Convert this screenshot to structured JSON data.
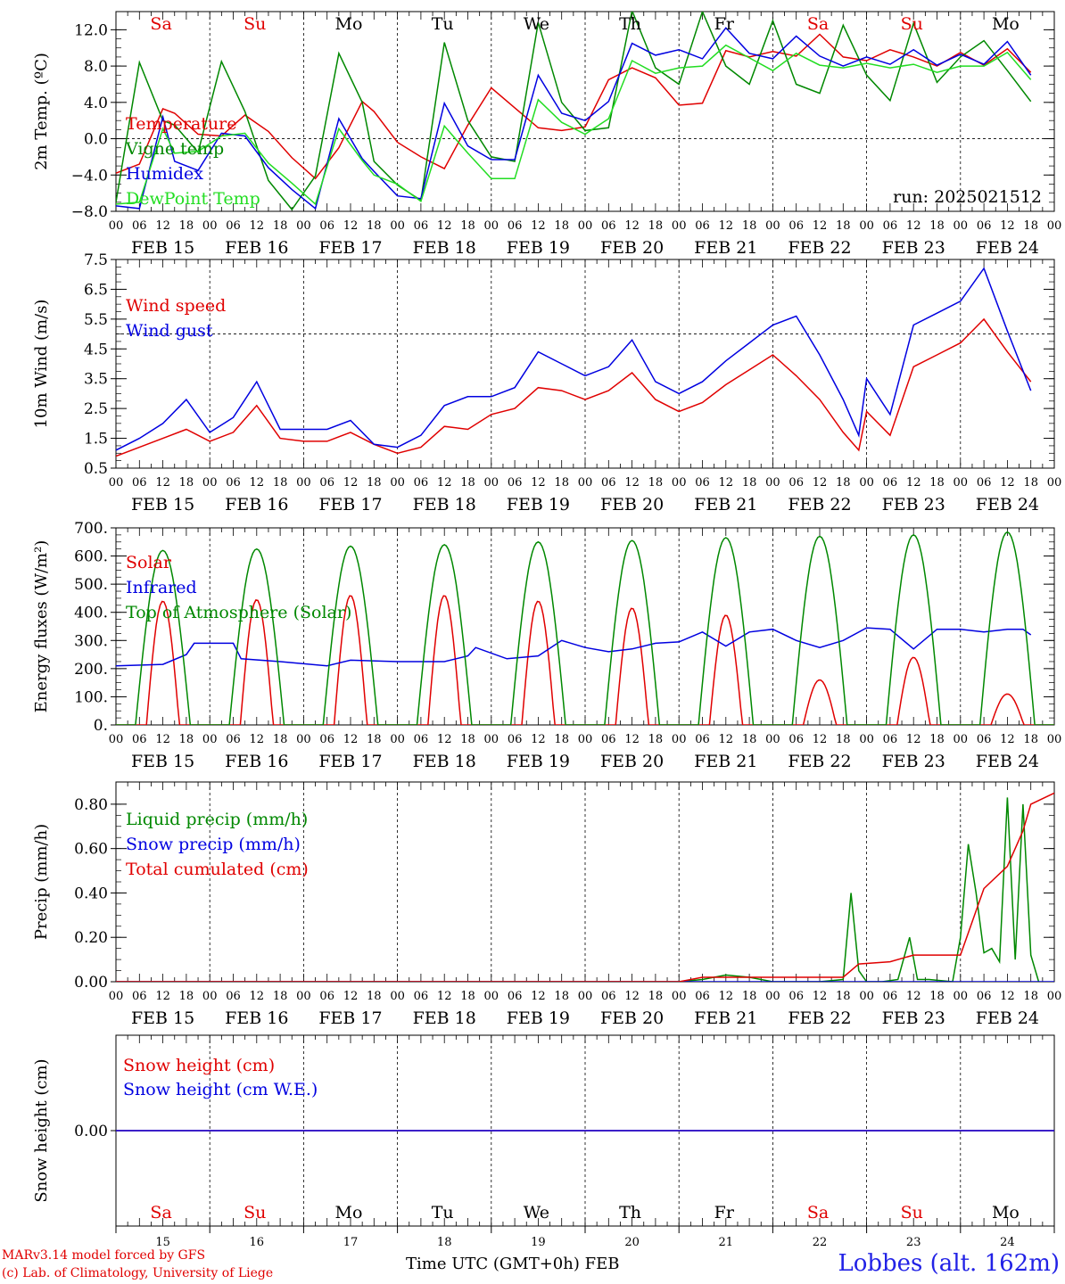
{
  "location_title": "Lobbes (alt. 162m)",
  "footer": {
    "model_line": "MARv3.14 model forced by GFS",
    "credit_line": "(c) Lab. of Climatology, University of Liege",
    "time_axis_label": "Time UTC (GMT+0h)",
    "month": "FEB"
  },
  "colors": {
    "red": "#e00000",
    "green": "#008800",
    "blue": "#0000e0",
    "light_green": "#22dd22",
    "weekend": "#e00000",
    "weekday": "#000000"
  },
  "days": [
    {
      "abbr": "Sa",
      "date": "FEB 15",
      "num": "15",
      "weekend": true
    },
    {
      "abbr": "Su",
      "date": "FEB 16",
      "num": "16",
      "weekend": true
    },
    {
      "abbr": "Mo",
      "date": "FEB 17",
      "num": "17",
      "weekend": false
    },
    {
      "abbr": "Tu",
      "date": "FEB 18",
      "num": "18",
      "weekend": false
    },
    {
      "abbr": "We",
      "date": "FEB 19",
      "num": "19",
      "weekend": false
    },
    {
      "abbr": "Th",
      "date": "FEB 20",
      "num": "20",
      "weekend": false
    },
    {
      "abbr": "Fr",
      "date": "FEB 21",
      "num": "21",
      "weekend": false
    },
    {
      "abbr": "Sa",
      "date": "FEB 22",
      "num": "22",
      "weekend": true
    },
    {
      "abbr": "Su",
      "date": "FEB 23",
      "num": "23",
      "weekend": true
    },
    {
      "abbr": "Mo",
      "date": "FEB 24",
      "num": "24",
      "weekend": false
    }
  ],
  "hour_ticks": [
    "00",
    "06",
    "12",
    "18"
  ],
  "chart_data": [
    {
      "type": "line",
      "ylabel": "2m Temp. (ºC)",
      "ylim": [
        -8,
        14
      ],
      "yticks": [
        "12.0",
        "8.0",
        "4.0",
        "0.0",
        "−4.0",
        "−8.0"
      ],
      "ytick_values": [
        12,
        8,
        4,
        0,
        -4,
        -8
      ],
      "ref_line": 0,
      "annotation": "run: 2025021512",
      "x_unit": "hours since FEB 15 00 UTC",
      "series": [
        {
          "name": "Temperature",
          "color": "#e00000",
          "x": [
            0,
            6,
            12,
            15,
            21,
            27,
            33,
            39,
            45,
            51,
            57,
            63,
            66,
            72,
            78,
            84,
            90,
            96,
            102,
            108,
            114,
            120,
            126,
            132,
            138,
            144,
            150,
            156,
            162,
            168,
            174,
            180,
            186,
            192,
            198,
            204,
            210,
            216,
            222,
            228,
            234
          ],
          "y": [
            -3.8,
            -2.8,
            3.3,
            2.8,
            0.5,
            0.3,
            2.6,
            0.8,
            -2.1,
            -4.4,
            -1.0,
            4.1,
            3.0,
            -0.4,
            -2.0,
            -3.3,
            1.5,
            5.6,
            3.4,
            1.2,
            0.9,
            1.3,
            6.5,
            7.8,
            6.7,
            3.7,
            3.9,
            9.7,
            9.0,
            9.6,
            9.1,
            11.5,
            9.0,
            8.6,
            9.8,
            9.0,
            8.0,
            9.5,
            8.1,
            9.9,
            7.3
          ]
        },
        {
          "name": "Vigne temp",
          "color": "#008800",
          "x": [
            0,
            6,
            12,
            15,
            21,
            27,
            33,
            39,
            45,
            51,
            57,
            63,
            66,
            72,
            78,
            84,
            90,
            96,
            102,
            108,
            114,
            120,
            126,
            132,
            138,
            144,
            150,
            156,
            162,
            168,
            174,
            180,
            186,
            192,
            198,
            204,
            210,
            216,
            222,
            228,
            234
          ],
          "y": [
            -7.0,
            8.4,
            2.0,
            1.5,
            -1.5,
            8.5,
            3.0,
            -4.6,
            -7.8,
            -4.1,
            9.4,
            4.0,
            -2.5,
            -5.1,
            -6.8,
            10.6,
            2.0,
            -2.0,
            -2.5,
            12.8,
            4.0,
            0.9,
            1.2,
            14.1,
            7.8,
            6.0,
            14.0,
            8.0,
            6.0,
            13.0,
            6.0,
            5.0,
            12.5,
            7.0,
            4.2,
            12.7,
            6.2,
            9.0,
            10.8,
            7.5,
            4.1
          ]
        },
        {
          "name": "Humidex",
          "color": "#0000e0",
          "x": [
            0,
            6,
            12,
            15,
            21,
            27,
            33,
            39,
            45,
            51,
            57,
            63,
            66,
            72,
            78,
            84,
            90,
            96,
            102,
            108,
            114,
            120,
            126,
            132,
            138,
            144,
            150,
            156,
            162,
            168,
            174,
            180,
            186,
            192,
            198,
            204,
            210,
            216,
            222,
            228,
            234
          ],
          "y": [
            -7.4,
            -7.7,
            2.4,
            -2.5,
            -3.5,
            0.6,
            0.3,
            -3.2,
            -5.6,
            -7.7,
            2.2,
            -2.2,
            -3.6,
            -6.3,
            -6.6,
            3.9,
            -0.8,
            -2.3,
            -2.3,
            7.0,
            2.8,
            2.0,
            4.1,
            10.5,
            9.2,
            9.8,
            8.8,
            12.2,
            9.4,
            8.8,
            11.3,
            9.1,
            8.0,
            9.0,
            8.2,
            9.8,
            8.1,
            9.3,
            8.2,
            10.7,
            7.0
          ]
        },
        {
          "name": "DewPoint Temp",
          "color": "#22dd22",
          "x": [
            0,
            6,
            12,
            15,
            21,
            27,
            33,
            39,
            45,
            51,
            57,
            63,
            66,
            72,
            78,
            84,
            90,
            96,
            102,
            108,
            114,
            120,
            126,
            132,
            138,
            144,
            150,
            156,
            162,
            168,
            174,
            180,
            186,
            192,
            198,
            204,
            210,
            216,
            222,
            228,
            234
          ],
          "y": [
            -7.2,
            -7.0,
            1.1,
            -1.6,
            -1.4,
            0.3,
            0.6,
            -2.7,
            -4.9,
            -7.2,
            1.1,
            -2.4,
            -4.0,
            -5.0,
            -6.9,
            1.4,
            -1.6,
            -4.4,
            -4.4,
            4.3,
            1.8,
            0.5,
            2.2,
            8.6,
            7.2,
            7.8,
            8.0,
            10.3,
            8.9,
            7.5,
            9.4,
            8.1,
            7.8,
            8.3,
            7.8,
            8.2,
            7.3,
            8.0,
            8.0,
            9.5,
            6.5
          ]
        }
      ]
    },
    {
      "type": "line",
      "ylabel": "10m Wind (m/s)",
      "ylim": [
        0.5,
        7.5
      ],
      "yticks": [
        "7.5",
        "6.5",
        "5.5",
        "4.5",
        "3.5",
        "2.5",
        "1.5",
        "0.5"
      ],
      "ytick_values": [
        7.5,
        6.5,
        5.5,
        4.5,
        3.5,
        2.5,
        1.5,
        0.5
      ],
      "ref_line": 5.0,
      "x_unit": "hours since FEB 15 00 UTC",
      "series": [
        {
          "name": "Wind speed",
          "color": "#e00000",
          "x": [
            0,
            6,
            12,
            18,
            24,
            30,
            36,
            42,
            48,
            54,
            60,
            66,
            72,
            78,
            84,
            90,
            96,
            102,
            108,
            114,
            120,
            126,
            132,
            138,
            144,
            150,
            156,
            162,
            168,
            174,
            180,
            186,
            190,
            192,
            198,
            204,
            210,
            216,
            222,
            228,
            234
          ],
          "y": [
            0.9,
            1.2,
            1.5,
            1.8,
            1.4,
            1.7,
            2.6,
            1.5,
            1.4,
            1.4,
            1.7,
            1.3,
            1.0,
            1.2,
            1.9,
            1.8,
            2.3,
            2.5,
            3.2,
            3.1,
            2.8,
            3.1,
            3.7,
            2.8,
            2.4,
            2.7,
            3.3,
            3.8,
            4.3,
            3.6,
            2.8,
            1.7,
            1.1,
            2.4,
            1.6,
            3.9,
            4.3,
            4.7,
            5.5,
            4.4,
            3.4
          ]
        },
        {
          "name": "Wind gust",
          "color": "#0000e0",
          "x": [
            0,
            6,
            12,
            18,
            24,
            30,
            36,
            42,
            48,
            54,
            60,
            66,
            72,
            78,
            84,
            90,
            96,
            102,
            108,
            114,
            120,
            126,
            132,
            138,
            144,
            150,
            156,
            162,
            168,
            174,
            180,
            186,
            190,
            192,
            198,
            204,
            210,
            216,
            222,
            228,
            234
          ],
          "y": [
            1.1,
            1.5,
            2.0,
            2.8,
            1.7,
            2.2,
            3.4,
            1.8,
            1.8,
            1.8,
            2.1,
            1.3,
            1.2,
            1.6,
            2.6,
            2.9,
            2.9,
            3.2,
            4.4,
            4.0,
            3.6,
            3.9,
            4.8,
            3.4,
            3.0,
            3.4,
            4.1,
            4.7,
            5.3,
            5.6,
            4.3,
            2.8,
            1.6,
            3.5,
            2.3,
            5.3,
            5.7,
            6.1,
            7.2,
            5.1,
            3.1
          ]
        }
      ]
    },
    {
      "type": "line",
      "ylabel": "Energy fluxes (W/m²)",
      "ylim": [
        0,
        700
      ],
      "yticks": [
        "700.",
        "600.",
        "500.",
        "400.",
        "300.",
        "200.",
        "100.",
        "0."
      ],
      "ytick_values": [
        700,
        600,
        500,
        400,
        300,
        200,
        100,
        0
      ],
      "x_unit": "hours since FEB 15 00 UTC",
      "series": [
        {
          "name": "Solar",
          "color": "#e00000",
          "peaks": [
            {
              "day": 0,
              "value": 440
            },
            {
              "day": 1,
              "value": 445
            },
            {
              "day": 2,
              "value": 460
            },
            {
              "day": 3,
              "value": 460
            },
            {
              "day": 4,
              "value": 440
            },
            {
              "day": 5,
              "value": 415
            },
            {
              "day": 6,
              "value": 390
            },
            {
              "day": 7,
              "value": 160
            },
            {
              "day": 8,
              "value": 240
            },
            {
              "day": 9,
              "value": 110
            }
          ]
        },
        {
          "name": "Infrared",
          "color": "#0000e0",
          "x": [
            0,
            12,
            18,
            20,
            30,
            32,
            42,
            54,
            60,
            72,
            84,
            90,
            92,
            100,
            108,
            114,
            120,
            126,
            132,
            138,
            144,
            150,
            156,
            162,
            168,
            174,
            180,
            186,
            192,
            198,
            204,
            210,
            216,
            222,
            228,
            232,
            234
          ],
          "y": [
            210,
            215,
            250,
            290,
            290,
            235,
            225,
            210,
            230,
            225,
            225,
            245,
            275,
            235,
            245,
            300,
            275,
            260,
            270,
            290,
            295,
            330,
            280,
            330,
            340,
            300,
            275,
            300,
            345,
            340,
            270,
            340,
            340,
            330,
            340,
            340,
            320
          ]
        },
        {
          "name": "Top of Atmosphere (Solar)",
          "color": "#008800",
          "peaks": [
            {
              "day": 0,
              "value": 620
            },
            {
              "day": 1,
              "value": 625
            },
            {
              "day": 2,
              "value": 635
            },
            {
              "day": 3,
              "value": 640
            },
            {
              "day": 4,
              "value": 650
            },
            {
              "day": 5,
              "value": 655
            },
            {
              "day": 6,
              "value": 665
            },
            {
              "day": 7,
              "value": 670
            },
            {
              "day": 8,
              "value": 675
            },
            {
              "day": 9,
              "value": 685
            }
          ]
        }
      ]
    },
    {
      "type": "line",
      "ylabel": "Precip (mm/h)",
      "ylim": [
        0,
        0.9
      ],
      "yticks": [
        "0.80",
        "0.60",
        "0.40",
        "0.20",
        "0.00"
      ],
      "ytick_values": [
        0.8,
        0.6,
        0.4,
        0.2,
        0.0
      ],
      "x_unit": "hours since FEB 15 00 UTC",
      "series": [
        {
          "name": "Liquid precip (mm/h)",
          "color": "#008800",
          "x": [
            0,
            144,
            150,
            156,
            162,
            168,
            174,
            180,
            186,
            188,
            190,
            192,
            196,
            200,
            203,
            205,
            208,
            214,
            216,
            218,
            220,
            222,
            224,
            226,
            228,
            230,
            232,
            234,
            236
          ],
          "y": [
            0,
            0,
            0.01,
            0.03,
            0.02,
            0,
            0,
            0,
            0.01,
            0.4,
            0.05,
            0,
            0,
            0.01,
            0.2,
            0.01,
            0.01,
            0,
            0.2,
            0.62,
            0.4,
            0.13,
            0.15,
            0.09,
            0.83,
            0.1,
            0.8,
            0.12,
            0
          ]
        },
        {
          "name": "Snow precip (mm/h)",
          "color": "#0000e0",
          "x": [
            0,
            240
          ],
          "y": [
            0,
            0
          ]
        },
        {
          "name": "Total cumulated (cm)",
          "color": "#e00000",
          "x": [
            0,
            144,
            150,
            156,
            186,
            190,
            198,
            204,
            216,
            222,
            228,
            232,
            234,
            240
          ],
          "y": [
            0,
            0,
            0.02,
            0.02,
            0.02,
            0.08,
            0.09,
            0.12,
            0.12,
            0.42,
            0.52,
            0.68,
            0.8,
            0.85
          ]
        }
      ]
    },
    {
      "type": "line",
      "ylabel": "Snow height (cm)",
      "ylim": [
        -1,
        1
      ],
      "yticks": [
        "0.00"
      ],
      "ytick_values": [
        0
      ],
      "x_unit": "hours since FEB 15 00 UTC",
      "series": [
        {
          "name": "Snow height (cm)",
          "color": "#e00000",
          "x": [
            0,
            240
          ],
          "y": [
            0,
            0
          ]
        },
        {
          "name": "Snow height (cm W.E.)",
          "color": "#0000e0",
          "x": [
            0,
            240
          ],
          "y": [
            0,
            0
          ]
        }
      ]
    }
  ]
}
